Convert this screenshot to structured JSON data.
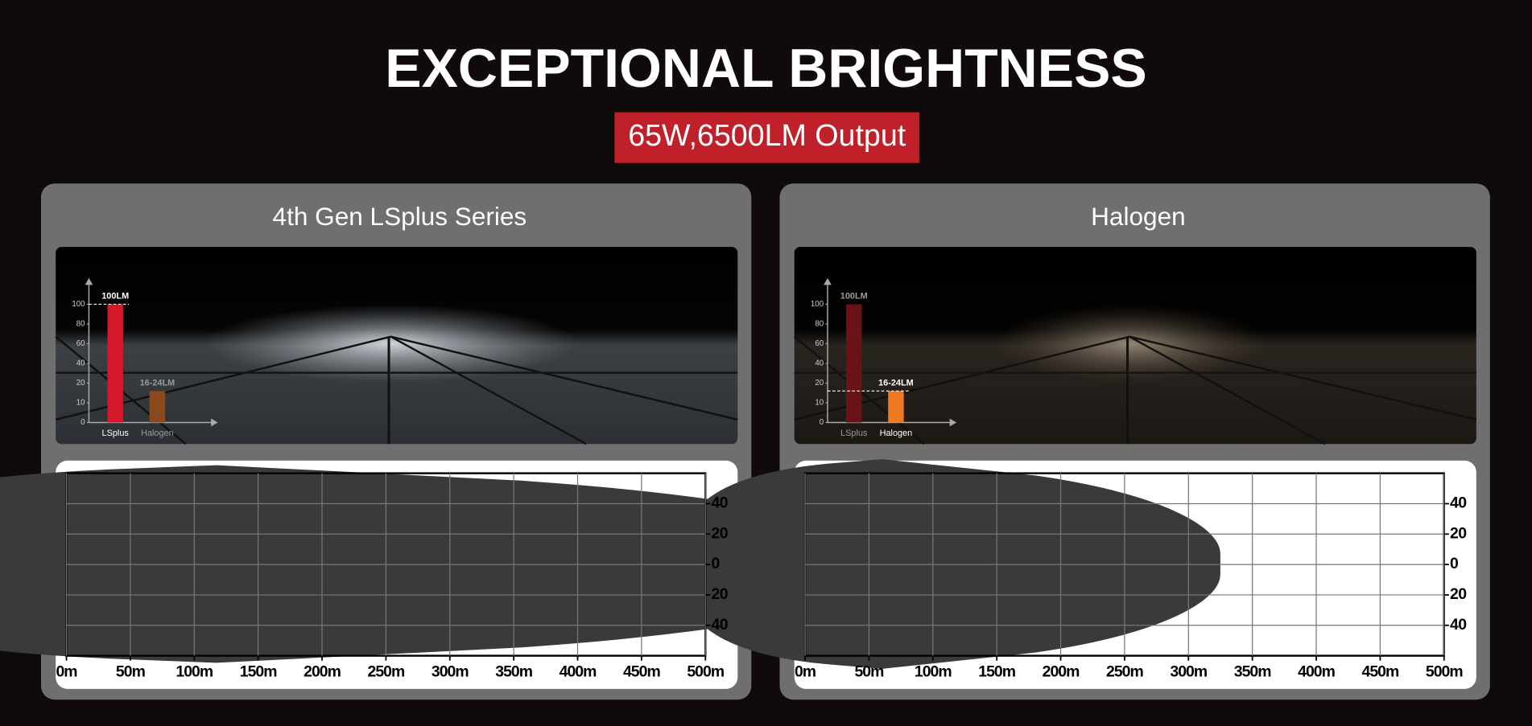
{
  "header": {
    "title": "EXCEPTIONAL BRIGHTNESS",
    "subtitle": "65W,6500LM Output"
  },
  "panels": [
    {
      "title": "4th Gen LSplus Series",
      "bar_chart": {
        "type": "bar",
        "categories": [
          "LSplus",
          "Halogen"
        ],
        "values": [
          100,
          16
        ],
        "value_labels": [
          "100LM",
          "16-24LM"
        ],
        "colors": [
          "#d3192b",
          "#8a4a1e"
        ],
        "label_colors": [
          "#ffffff",
          "#9a9a9a"
        ],
        "dashed": [
          true,
          false
        ],
        "yticks": [
          0,
          10,
          20,
          40,
          60,
          80,
          100
        ]
      },
      "beam_chart": {
        "type": "area",
        "xlim": [
          0,
          500
        ],
        "ylim": [
          -60,
          60
        ],
        "xticks": [
          {
            "value": 0,
            "label": "0m"
          },
          {
            "value": 50,
            "label": "50m"
          },
          {
            "value": 100,
            "label": "100m"
          },
          {
            "value": 150,
            "label": "150m"
          },
          {
            "value": 200,
            "label": "200m"
          },
          {
            "value": 250,
            "label": "250m"
          },
          {
            "value": 300,
            "label": "300m"
          },
          {
            "value": 350,
            "label": "350m"
          },
          {
            "value": 400,
            "label": "400m"
          },
          {
            "value": 450,
            "label": "450m"
          },
          {
            "value": 500,
            "label": "500m"
          }
        ],
        "yticks": [
          40,
          20,
          0,
          {
            "value": -20,
            "label": "20"
          },
          {
            "value": -40,
            "label": "40"
          }
        ],
        "grid": true
      }
    },
    {
      "title": "Halogen",
      "bar_chart": {
        "type": "bar",
        "categories": [
          "LSplus",
          "Halogen"
        ],
        "values": [
          100,
          16
        ],
        "value_labels": [
          "100LM",
          "16-24LM"
        ],
        "colors": [
          "#6a1218",
          "#f07a22"
        ],
        "label_colors": [
          "#9a9a9a",
          "#ffffff"
        ],
        "dashed": [
          false,
          true
        ],
        "yticks": [
          0,
          10,
          20,
          40,
          60,
          80,
          100
        ]
      },
      "beam_chart": {
        "type": "area",
        "xlim": [
          0,
          500
        ],
        "ylim": [
          -60,
          60
        ],
        "xticks": [
          {
            "value": 0,
            "label": "0m"
          },
          {
            "value": 50,
            "label": "50m"
          },
          {
            "value": 100,
            "label": "100m"
          },
          {
            "value": 150,
            "label": "150m"
          },
          {
            "value": 200,
            "label": "200m"
          },
          {
            "value": 250,
            "label": "250m"
          },
          {
            "value": 300,
            "label": "300m"
          },
          {
            "value": 350,
            "label": "350m"
          },
          {
            "value": 400,
            "label": "400m"
          },
          {
            "value": 450,
            "label": "450m"
          },
          {
            "value": 500,
            "label": "500m"
          }
        ],
        "yticks": [
          40,
          20,
          0,
          {
            "value": -20,
            "label": "20"
          },
          {
            "value": -40,
            "label": "40"
          }
        ],
        "grid": true
      }
    }
  ]
}
